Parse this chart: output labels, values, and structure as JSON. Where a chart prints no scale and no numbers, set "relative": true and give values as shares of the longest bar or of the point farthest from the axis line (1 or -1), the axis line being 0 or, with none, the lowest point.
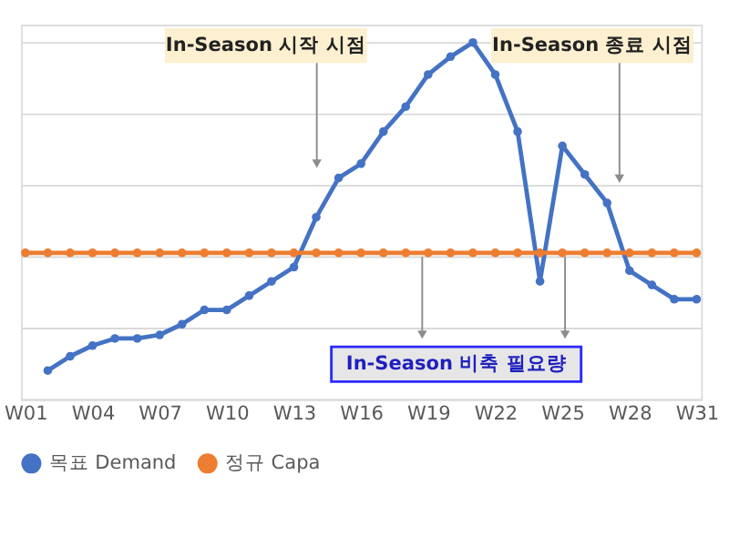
{
  "chart_data": {
    "type": "line",
    "relative": true,
    "categories": [
      "W01",
      null,
      null,
      "W04",
      null,
      null,
      "W07",
      null,
      null,
      "W10",
      null,
      null,
      "W13",
      null,
      null,
      "W16",
      null,
      null,
      "W19",
      null,
      null,
      "W22",
      null,
      null,
      "W25",
      null,
      null,
      "W28",
      null,
      null,
      "W31"
    ],
    "series": [
      {
        "name": "목표 Demand",
        "color": "#4472c4",
        "values": [
          null,
          0.08,
          0.12,
          0.15,
          0.17,
          0.17,
          0.18,
          0.21,
          0.25,
          0.25,
          0.29,
          0.33,
          0.37,
          0.51,
          0.62,
          0.66,
          0.75,
          0.82,
          0.91,
          0.96,
          1.0,
          0.91,
          0.75,
          0.33,
          0.71,
          0.63,
          0.55,
          0.36,
          0.32,
          0.28,
          0.28
        ]
      },
      {
        "name": "정규 Capa",
        "color": "#ed7d31",
        "values": [
          0.41,
          0.41,
          0.41,
          0.41,
          0.41,
          0.41,
          0.41,
          0.41,
          0.41,
          0.41,
          0.41,
          0.41,
          0.41,
          0.41,
          0.41,
          0.41,
          0.41,
          0.41,
          0.41,
          0.41,
          0.41,
          0.41,
          0.41,
          0.41,
          0.41,
          0.41,
          0.41,
          0.41,
          0.41,
          0.41,
          0.41
        ]
      }
    ],
    "annotations": [
      "In-Season 시작 시점",
      "In-Season 종료 시점",
      "In-Season 비축 필요량"
    ],
    "grid": "y",
    "legend": "bottom",
    "marker": "circle",
    "line_style": "solid"
  }
}
